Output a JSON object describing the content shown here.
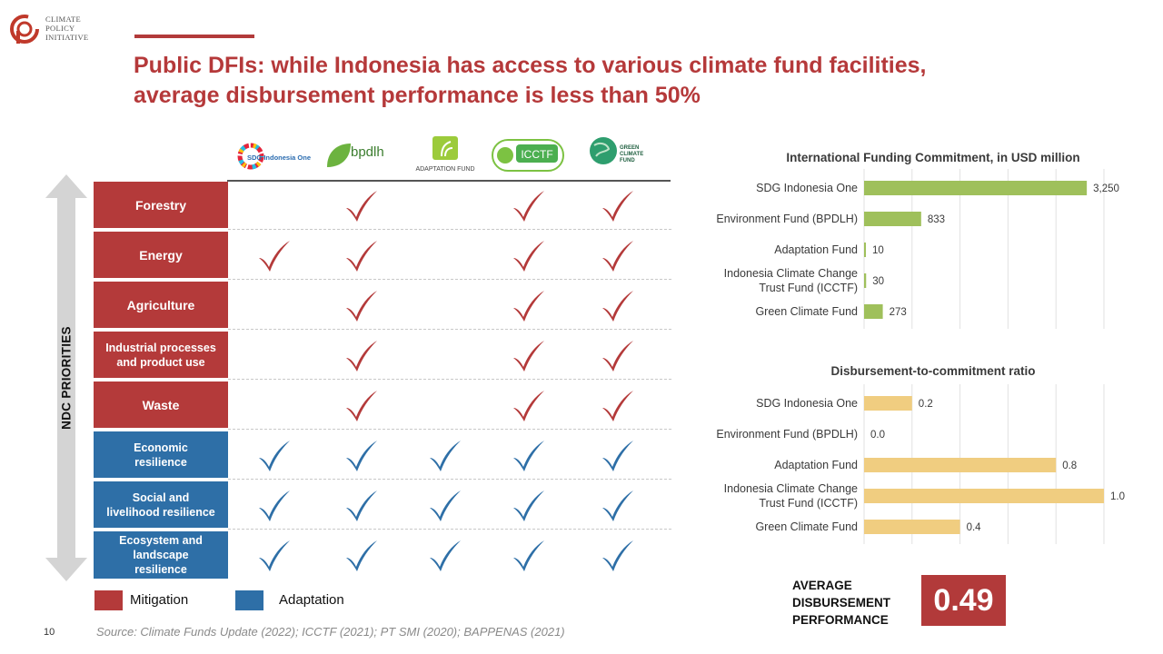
{
  "logo": {
    "lines": [
      "CLIMATE",
      "POLICY",
      "INITIATIVE"
    ]
  },
  "title": {
    "line1": "Public DFIs: while Indonesia has access to various climate fund facilities,",
    "line2": "average disbursement performance is less than 50%"
  },
  "funds": {
    "sdg": "SDG Indonesia One",
    "bpdlh": "bpdlh",
    "af": "ADAPTATION FUND",
    "icctf": "ICCTF",
    "gcf_1": "GREEN",
    "gcf_2": "CLIMATE",
    "gcf_3": "FUND"
  },
  "ndc_label": "NDC PRIORITIES",
  "colors": {
    "mitigation": "#b43a3a",
    "adaptation": "#2e6fa7",
    "commitment_bar": "#9fc05b",
    "ratio_bar": "#f0cd80",
    "accent": "#b23a3a"
  },
  "matrix": {
    "rows": [
      {
        "label": "Forestry",
        "type": "mitigation",
        "checks": [
          false,
          true,
          false,
          true,
          true
        ]
      },
      {
        "label": "Energy",
        "type": "mitigation",
        "checks": [
          true,
          true,
          false,
          true,
          true
        ]
      },
      {
        "label": "Agriculture",
        "type": "mitigation",
        "checks": [
          false,
          true,
          false,
          true,
          true
        ]
      },
      {
        "label_1": "Industrial processes",
        "label_2": "and product use",
        "type": "mitigation",
        "checks": [
          false,
          true,
          false,
          true,
          true
        ]
      },
      {
        "label": "Waste",
        "type": "mitigation",
        "checks": [
          false,
          true,
          false,
          true,
          true
        ]
      },
      {
        "label_1": "Economic",
        "label_2": "resilience",
        "type": "adaptation",
        "checks": [
          true,
          true,
          true,
          true,
          true
        ]
      },
      {
        "label_1": "Social and",
        "label_2": "livelihood resilience",
        "type": "adaptation",
        "checks": [
          true,
          true,
          true,
          true,
          true
        ]
      },
      {
        "label_1": "Ecosystem and",
        "label_2": "landscape",
        "label_3": "resilience",
        "type": "adaptation",
        "checks": [
          true,
          true,
          true,
          true,
          true
        ]
      }
    ]
  },
  "legend": {
    "mitigation": "Mitigation",
    "adaptation": "Adaptation"
  },
  "page_number": "10",
  "source": "Source: Climate Funds Update (2022); ICCTF (2021); PT SMI (2020); BAPPENAS (2021)",
  "chart_data": [
    {
      "type": "bar",
      "orientation": "horizontal",
      "title": "International Funding Commitment, in USD million",
      "categories": [
        [
          "SDG Indonesia One"
        ],
        [
          "Environment Fund (BPDLH)"
        ],
        [
          "Adaptation Fund"
        ],
        [
          "Indonesia Climate Change",
          "Trust Fund (ICCTF)"
        ],
        [
          "Green Climate Fund"
        ]
      ],
      "values": [
        3250,
        833,
        10,
        30,
        273
      ],
      "value_labels": [
        "3,250",
        "833",
        "10",
        "30",
        "273"
      ],
      "xlim": [
        0,
        3500
      ],
      "grid": true,
      "color": "#9fc05b"
    },
    {
      "type": "bar",
      "orientation": "horizontal",
      "title": "Disbursement-to-commitment ratio",
      "categories": [
        [
          "SDG Indonesia One"
        ],
        [
          "Environment Fund (BPDLH)"
        ],
        [
          "Adaptation Fund"
        ],
        [
          "Indonesia Climate Change",
          "Trust Fund (ICCTF)"
        ],
        [
          "Green Climate Fund"
        ]
      ],
      "values": [
        0.2,
        0.0,
        0.8,
        1.0,
        0.4
      ],
      "value_labels": [
        "0.2",
        "0.0",
        "0.8",
        "1.0",
        "0.4"
      ],
      "xlim": [
        0,
        1.0
      ],
      "grid": true,
      "color": "#f0cd80"
    }
  ],
  "average": {
    "line1": "AVERAGE",
    "line2": "DISBURSEMENT",
    "line3": "PERFORMANCE",
    "value": "0.49"
  }
}
